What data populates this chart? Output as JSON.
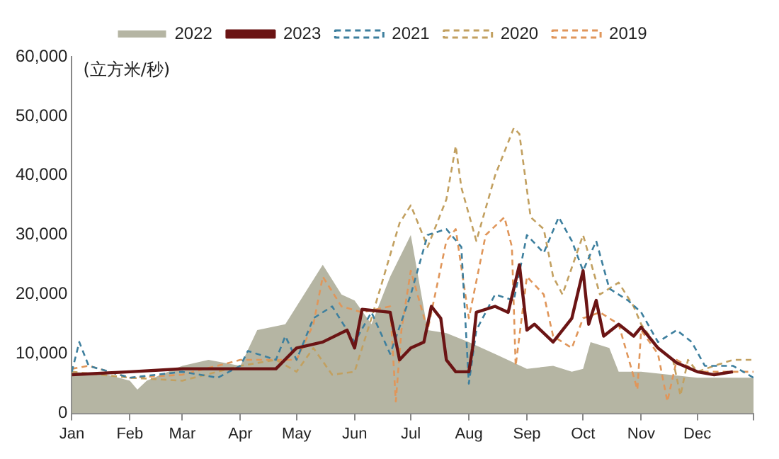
{
  "chart_data": {
    "type": "line",
    "ylabel": "(立方米/秒)",
    "xlim": [
      "--01-01",
      "--12-31"
    ],
    "xticks": [
      {
        "value": "--01-01",
        "label": "Jan"
      },
      {
        "value": "--02-01",
        "label": "Feb"
      },
      {
        "value": "--03-01",
        "label": "Mar"
      },
      {
        "value": "--04-01",
        "label": "Apr"
      },
      {
        "value": "--05-01",
        "label": "May"
      },
      {
        "value": "--06-01",
        "label": "Jun"
      },
      {
        "value": "--07-01",
        "label": "Jul"
      },
      {
        "value": "--08-01",
        "label": "Aug"
      },
      {
        "value": "--09-01",
        "label": "Sep"
      },
      {
        "value": "--10-01",
        "label": "Oct"
      },
      {
        "value": "--11-01",
        "label": "Nov"
      },
      {
        "value": "--12-01",
        "label": "Dec"
      },
      {
        "value": "--12-31",
        "label": null
      }
    ],
    "ylim": [
      0,
      60000
    ],
    "yticks": [
      {
        "value": 0,
        "label": "0"
      },
      {
        "value": 10000,
        "label": "10,000"
      },
      {
        "value": 20000,
        "label": "20,000"
      },
      {
        "value": 30000,
        "label": "30,000"
      },
      {
        "value": 40000,
        "label": "40,000"
      },
      {
        "value": 50000,
        "label": "50,000"
      },
      {
        "value": 60000,
        "label": "60,000"
      }
    ],
    "grid": false,
    "legend": "top",
    "marker": "none",
    "series": [
      {
        "name": "2022",
        "type": "area",
        "color": "#b5b5a3",
        "x": [
          "--01-01",
          "--01-20",
          "--02-01",
          "--02-05",
          "--02-10",
          "--03-01",
          "--03-15",
          "--04-01",
          "--04-10",
          "--04-25",
          "--05-05",
          "--05-15",
          "--05-25",
          "--06-01",
          "--06-10",
          "--06-20",
          "--07-01",
          "--07-10",
          "--07-20",
          "--08-01",
          "--08-15",
          "--09-01",
          "--09-15",
          "--09-25",
          "--10-01",
          "--10-05",
          "--10-15",
          "--10-20",
          "--11-01",
          "--12-01",
          "--12-31"
        ],
        "values": [
          7000,
          6500,
          5500,
          4000,
          5500,
          8000,
          9000,
          8000,
          14000,
          15000,
          20000,
          25000,
          20000,
          19000,
          15000,
          23000,
          30000,
          14000,
          13500,
          12000,
          10000,
          7500,
          8000,
          7000,
          7500,
          12000,
          11000,
          7000,
          7000,
          6000,
          6000
        ]
      },
      {
        "name": "2023",
        "type": "line",
        "color": "#6b1414",
        "line_style": "solid",
        "x": [
          "--01-01",
          "--02-01",
          "--03-01",
          "--04-01",
          "--04-20",
          "--05-01",
          "--05-15",
          "--05-28",
          "--06-01",
          "--06-05",
          "--06-20",
          "--06-25",
          "--07-01",
          "--07-08",
          "--07-12",
          "--07-17",
          "--07-20",
          "--07-25",
          "--08-01",
          "--08-03",
          "--08-05",
          "--08-15",
          "--08-22",
          "--08-28",
          "--09-01",
          "--09-05",
          "--09-15",
          "--09-25",
          "--10-01",
          "--10-04",
          "--10-08",
          "--10-12",
          "--10-20",
          "--10-28",
          "--11-01",
          "--11-10",
          "--11-20",
          "--12-01",
          "--12-10",
          "--12-20"
        ],
        "values": [
          6500,
          7000,
          7500,
          7500,
          7500,
          11000,
          12000,
          14000,
          11000,
          17500,
          17000,
          9000,
          11000,
          12000,
          18000,
          16000,
          9000,
          7000,
          7000,
          11000,
          17000,
          18000,
          17000,
          25000,
          14000,
          15000,
          12000,
          16000,
          24000,
          15000,
          19000,
          13000,
          15000,
          13000,
          14500,
          11000,
          8500,
          7000,
          6500,
          7000
        ]
      },
      {
        "name": "2021",
        "type": "line",
        "color": "#3d7f9e",
        "line_style": "dashed",
        "x": [
          "--01-01",
          "--01-05",
          "--01-10",
          "--02-01",
          "--03-01",
          "--03-20",
          "--04-01",
          "--04-05",
          "--04-20",
          "--04-25",
          "--05-01",
          "--05-10",
          "--05-20",
          "--06-01",
          "--06-10",
          "--06-20",
          "--07-01",
          "--07-10",
          "--07-20",
          "--07-28",
          "--08-01",
          "--08-05",
          "--08-15",
          "--08-25",
          "--09-01",
          "--09-10",
          "--09-18",
          "--09-25",
          "--10-01",
          "--10-08",
          "--10-15",
          "--10-25",
          "--11-01",
          "--11-10",
          "--11-20",
          "--11-28",
          "--12-05",
          "--12-20",
          "--12-31"
        ],
        "values": [
          7000,
          12000,
          8000,
          6000,
          7000,
          6000,
          8000,
          10500,
          9000,
          13000,
          9000,
          16000,
          18000,
          12000,
          17000,
          10000,
          20000,
          30000,
          31000,
          28000,
          5000,
          14000,
          20000,
          19000,
          30000,
          27000,
          33000,
          29000,
          24000,
          29000,
          21000,
          19000,
          17000,
          12000,
          14000,
          12000,
          8000,
          8000,
          6000
        ]
      },
      {
        "name": "2020",
        "type": "line",
        "color": "#c2a060",
        "line_style": "dashed",
        "x": [
          "--01-01",
          "--02-01",
          "--03-01",
          "--04-01",
          "--04-20",
          "--05-01",
          "--05-10",
          "--05-20",
          "--06-01",
          "--06-10",
          "--06-25",
          "--07-01",
          "--07-10",
          "--07-20",
          "--07-25",
          "--07-28",
          "--08-05",
          "--08-15",
          "--08-25",
          "--08-28",
          "--09-03",
          "--09-10",
          "--09-15",
          "--09-20",
          "--10-01",
          "--10-10",
          "--10-20",
          "--10-28",
          "--11-01",
          "--11-10",
          "--11-18",
          "--11-22",
          "--11-26",
          "--12-01",
          "--12-10",
          "--12-20",
          "--12-31"
        ],
        "values": [
          7000,
          6000,
          5500,
          8000,
          9000,
          7000,
          11000,
          6500,
          7000,
          16000,
          32000,
          35000,
          28000,
          36000,
          45000,
          38000,
          29000,
          40000,
          48000,
          47000,
          33000,
          31000,
          23000,
          20000,
          30000,
          20000,
          22000,
          18000,
          15000,
          11000,
          9000,
          3000,
          9000,
          7000,
          8000,
          9000,
          9000
        ]
      },
      {
        "name": "2019",
        "type": "line",
        "color": "#e0965a",
        "line_style": "dashed",
        "x": [
          "--01-01",
          "--01-10",
          "--02-01",
          "--03-01",
          "--04-01",
          "--05-01",
          "--05-10",
          "--05-15",
          "--05-25",
          "--06-05",
          "--06-20",
          "--06-23",
          "--06-26",
          "--07-01",
          "--07-10",
          "--07-20",
          "--07-25",
          "--08-01",
          "--08-10",
          "--08-20",
          "--08-24",
          "--08-26",
          "--09-01",
          "--09-10",
          "--09-15",
          "--09-25",
          "--10-01",
          "--10-10",
          "--10-20",
          "--10-30",
          "--11-01",
          "--11-10",
          "--11-15",
          "--11-20",
          "--12-01",
          "--12-31"
        ],
        "values": [
          7500,
          8000,
          6000,
          6500,
          9000,
          9000,
          15000,
          23000,
          18000,
          17000,
          18000,
          2000,
          14000,
          24000,
          14000,
          29000,
          31000,
          16000,
          30000,
          33000,
          28000,
          8000,
          23000,
          20000,
          13000,
          11000,
          16000,
          17000,
          15000,
          4000,
          14000,
          10000,
          2000,
          9000,
          7000,
          7000
        ]
      }
    ]
  }
}
